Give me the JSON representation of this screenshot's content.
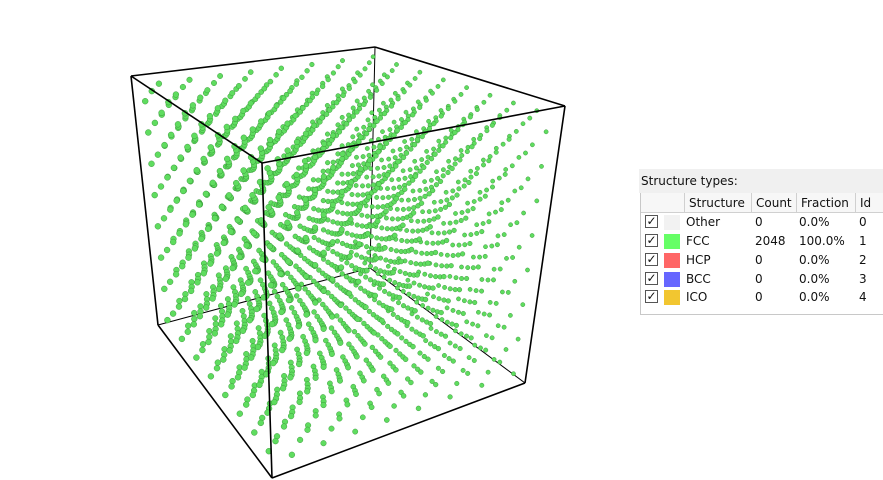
{
  "structure_panel": {
    "title": "Structure types:",
    "headers": {
      "structure": "Structure",
      "count": "Count",
      "fraction": "Fraction",
      "id": "Id"
    },
    "rows": [
      {
        "checked": true,
        "check_mark": "✓",
        "color": "#f2f2f2",
        "name": "Other",
        "count": "0",
        "fraction": "0.0%",
        "id": "0"
      },
      {
        "checked": true,
        "check_mark": "✓",
        "color": "#66ff66",
        "name": "FCC",
        "count": "2048",
        "fraction": "100.0%",
        "id": "1"
      },
      {
        "checked": true,
        "check_mark": "✓",
        "color": "#ff6666",
        "name": "HCP",
        "count": "0",
        "fraction": "0.0%",
        "id": "2"
      },
      {
        "checked": true,
        "check_mark": "✓",
        "color": "#6666ff",
        "name": "BCC",
        "count": "0",
        "fraction": "0.0%",
        "id": "3"
      },
      {
        "checked": true,
        "check_mark": "✓",
        "color": "#f2c630",
        "name": "ICO",
        "count": "0",
        "fraction": "0.0%",
        "id": "4"
      }
    ]
  },
  "viewport": {
    "atom_color": "#5fdc5f",
    "atom_outline": "#2e8b2e",
    "box_line_color": "#000000"
  }
}
